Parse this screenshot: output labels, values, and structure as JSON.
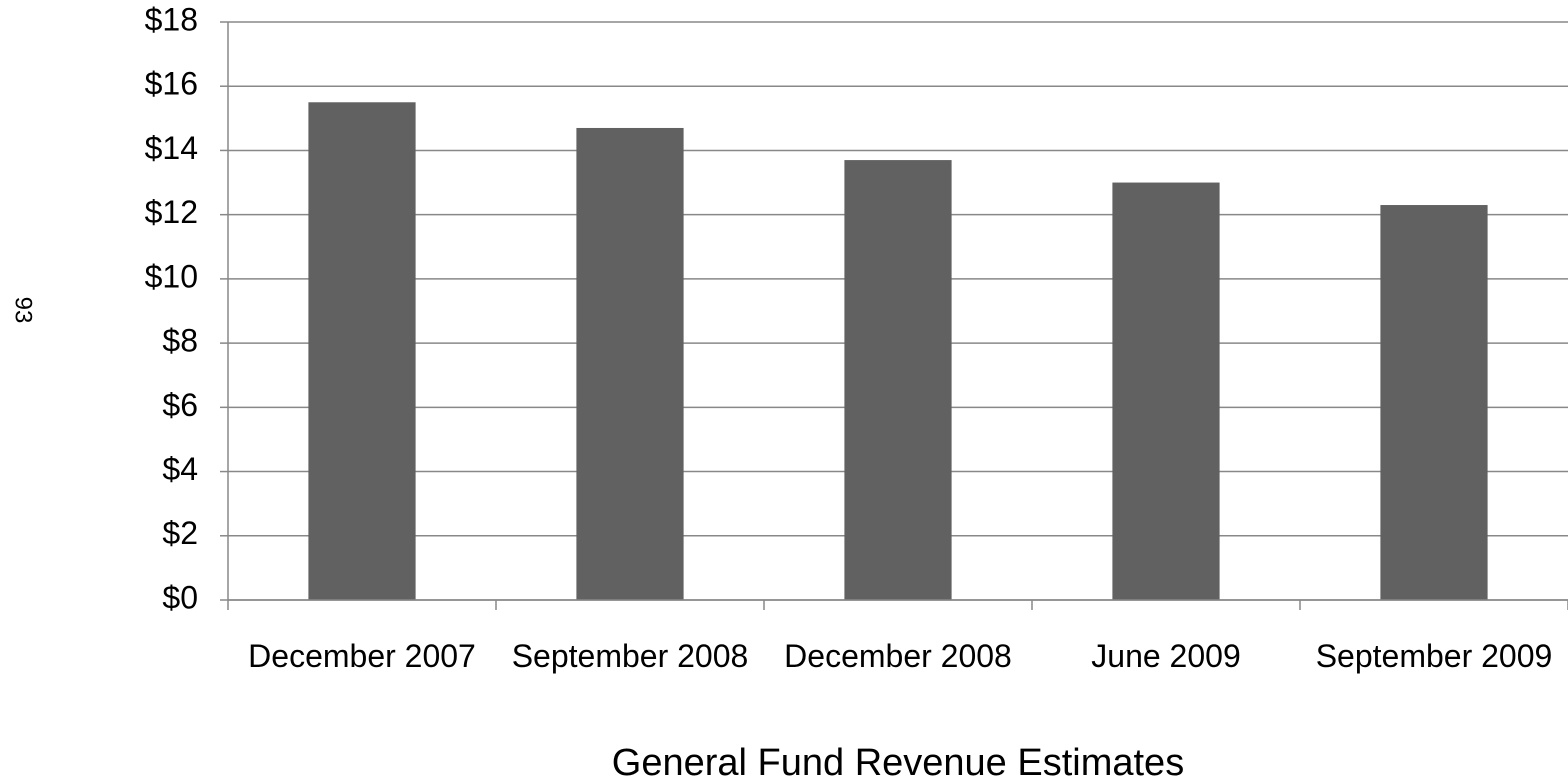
{
  "page_number": "93",
  "chart_data": {
    "type": "bar",
    "x_label": "General Fund Revenue Estimates",
    "categories": [
      "December 2007",
      "September 2008",
      "December 2008",
      "June 2009",
      "September 2009"
    ],
    "values": [
      15.5,
      14.7,
      13.7,
      13.0,
      12.3
    ],
    "color": "#616161",
    "ylim": [
      0,
      18
    ],
    "yticks": [
      {
        "value": 0,
        "label": "$0"
      },
      {
        "value": 2,
        "label": "$2"
      },
      {
        "value": 4,
        "label": "$4"
      },
      {
        "value": 6,
        "label": "$6"
      },
      {
        "value": 8,
        "label": "$8"
      },
      {
        "value": 10,
        "label": "$10"
      },
      {
        "value": 12,
        "label": "$12"
      },
      {
        "value": 14,
        "label": "$14"
      },
      {
        "value": 16,
        "label": "$16"
      },
      {
        "value": 18,
        "label": "$18"
      }
    ],
    "grid": true
  }
}
